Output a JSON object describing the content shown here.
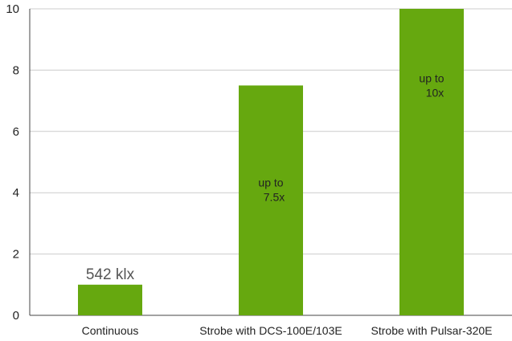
{
  "chart_data": {
    "type": "bar",
    "categories": [
      "Continuous",
      "Strobe with DCS-100E/103E",
      "Strobe with Pulsar-320E"
    ],
    "values": [
      1,
      7.5,
      10
    ],
    "bar_labels": [
      "",
      "up to\n7.5x",
      "up to\n10x"
    ],
    "above_labels": [
      "542 klx",
      "",
      ""
    ],
    "ylim": [
      0,
      10
    ],
    "yticks": [
      0,
      2,
      4,
      6,
      8,
      10
    ],
    "grid": true,
    "colors": {
      "bar": "#66a80f",
      "grid": "#cccccc",
      "axis": "#444444"
    }
  }
}
